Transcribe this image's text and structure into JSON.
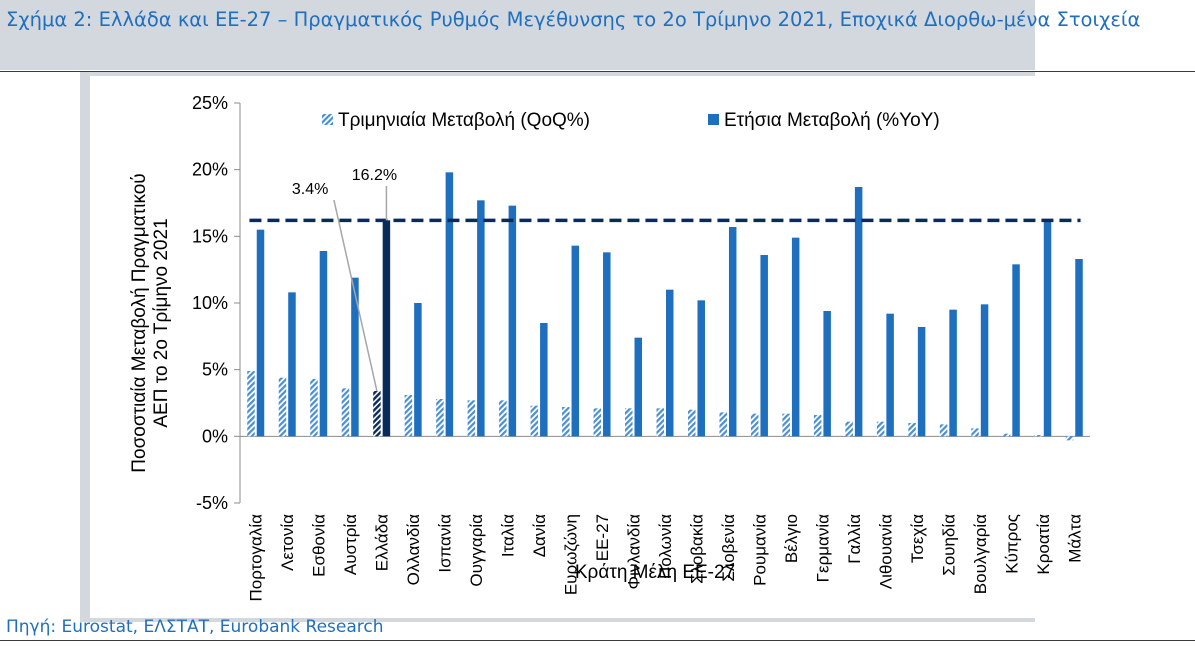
{
  "title": "Σχήμα 2: Ελλάδα και ΕΕ-27 – Πραγματικός Ρυθμός Μεγέθυνσης το 2ο Τρίμηνο 2021, Εποχικά Διορθω-μένα Στοιχεία",
  "source": "Πηγή: Eurostat, ΕΛΣΤΑΤ, Eurobank Research",
  "colors": {
    "yoy": "#1f6fbf",
    "qoq": "#4a8fd4",
    "greece": "#0b2a5c",
    "reference_line": "#0b2a5c",
    "title": "#1f6fbf"
  },
  "chart_data": {
    "type": "bar",
    "xlabel": "Κράτη Μέλη ΕΕ-27",
    "ylabel": "Ποσοστιαία Μεταβολή Πραγματικού ΑΕΠ το 2ο Τρίμηνο 2021",
    "ylim": [
      -5,
      25
    ],
    "yticks": [
      "-5%",
      "0%",
      "5%",
      "10%",
      "15%",
      "20%",
      "25%"
    ],
    "grid": false,
    "legend_position": "top",
    "categories": [
      "Πορτογαλία",
      "Λετονία",
      "Εσθονία",
      "Αυστρία",
      "Ελλάδα",
      "Ολλανδία",
      "Ισπανία",
      "Ουγγαρία",
      "Ιταλία",
      "Δανία",
      "Ευρωζώνη",
      "ΕΕ-27",
      "Φινλανδία",
      "Πολωνία",
      "Σλοβακία",
      "Σλοβενία",
      "Ρουμανία",
      "Βέλγιο",
      "Γερμανία",
      "Γαλλία",
      "Λιθουανία",
      "Τσεχία",
      "Σουηδία",
      "Βουλγαρία",
      "Κύπρος",
      "Κροατία",
      "Μάλτα"
    ],
    "highlight_category": "Ελλάδα",
    "series": [
      {
        "name": "Τριμηνιαία Μεταβολή (QoQ%)",
        "style": "hatched",
        "values": [
          4.9,
          4.4,
          4.3,
          3.6,
          3.4,
          3.1,
          2.8,
          2.7,
          2.7,
          2.3,
          2.2,
          2.1,
          2.1,
          2.1,
          2.0,
          1.8,
          1.7,
          1.7,
          1.6,
          1.1,
          1.1,
          1.0,
          0.9,
          0.6,
          0.2,
          0.1,
          -0.3
        ]
      },
      {
        "name": "Ετήσια Μεταβολή (%YoY)",
        "style": "solid",
        "values": [
          15.5,
          10.8,
          13.9,
          11.9,
          16.2,
          10.0,
          19.8,
          17.7,
          17.3,
          8.5,
          14.3,
          13.8,
          7.4,
          11.0,
          10.2,
          15.7,
          13.6,
          14.9,
          9.4,
          18.7,
          9.2,
          8.2,
          9.5,
          9.9,
          12.9,
          16.3,
          13.3
        ]
      }
    ],
    "reference_line": {
      "value": 16.2
    },
    "annotations": [
      {
        "text": "3.4%",
        "category": "Ελλάδα",
        "series": "Τριμηνιαία Μεταβολή (QoQ%)",
        "value": 3.4
      },
      {
        "text": "16.2%",
        "category": "Ελλάδα",
        "series": "Ετήσια Μεταβολή (%YoY)",
        "value": 16.2
      }
    ]
  }
}
